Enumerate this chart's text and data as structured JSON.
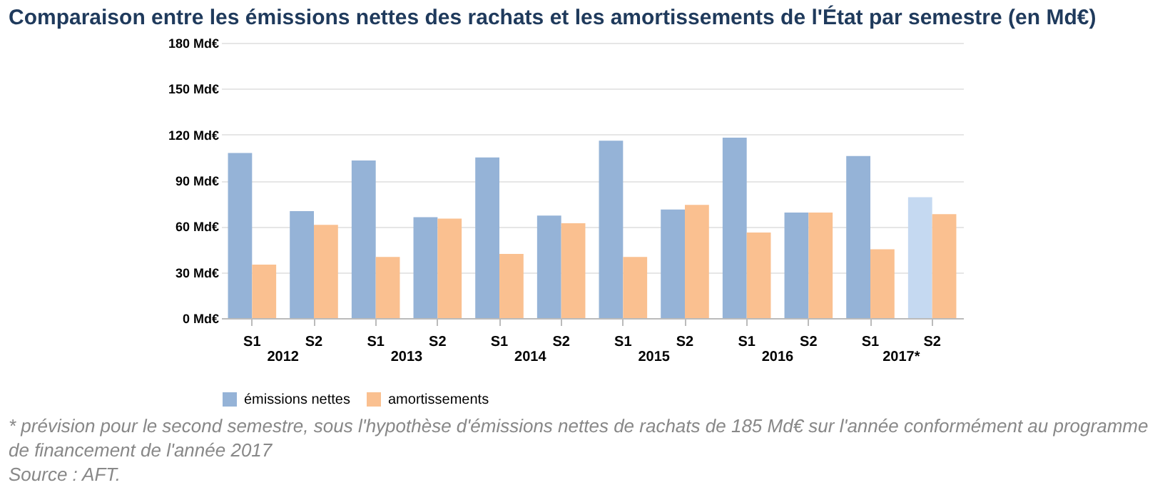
{
  "chart_data": {
    "type": "bar",
    "title": "Comparaison entre les émissions nettes des rachats et les amortissements de l'État par semestre (en Md€)",
    "categories": [
      "S1",
      "S2",
      "S1",
      "S2",
      "S1",
      "S2",
      "S1",
      "S2",
      "S1",
      "S2",
      "S1",
      "S2"
    ],
    "series": [
      {
        "name": "émissions nettes",
        "color": "#95b3d7",
        "colors": [
          "#95b3d7",
          "#95b3d7",
          "#95b3d7",
          "#95b3d7",
          "#95b3d7",
          "#95b3d7",
          "#95b3d7",
          "#95b3d7",
          "#95b3d7",
          "#95b3d7",
          "#95b3d7",
          "#c5d9f1"
        ],
        "values": [
          108,
          70,
          103,
          66,
          105,
          67,
          116,
          71,
          118,
          69,
          106,
          79
        ]
      },
      {
        "name": "amortissements",
        "color": "#fac090",
        "values": [
          35,
          61,
          40,
          65,
          42,
          62,
          40,
          74,
          56,
          69,
          45,
          68
        ]
      }
    ],
    "ylim": [
      0,
      180
    ],
    "yticks": [
      {
        "value": 0,
        "label": "0 Md€"
      },
      {
        "value": 30,
        "label": "30 Md€"
      },
      {
        "value": 60,
        "label": "60 Md€"
      },
      {
        "value": 90,
        "label": "90 Md€"
      },
      {
        "value": 120,
        "label": "120 Md€"
      },
      {
        "value": 150,
        "label": "150 Md€"
      },
      {
        "value": 180,
        "label": "180 Md€"
      }
    ],
    "grid": "y",
    "legend": "bottom",
    "annotations": [
      "2012",
      "2013",
      "2014",
      "2015",
      "2016",
      "2017*",
      "* prévision pour le second semestre, sous l'hypothèse d'émissions nettes de rachats de 185 Md€ sur l'année conformément au programme de financement de l'année 2017",
      "Source : AFT."
    ]
  }
}
